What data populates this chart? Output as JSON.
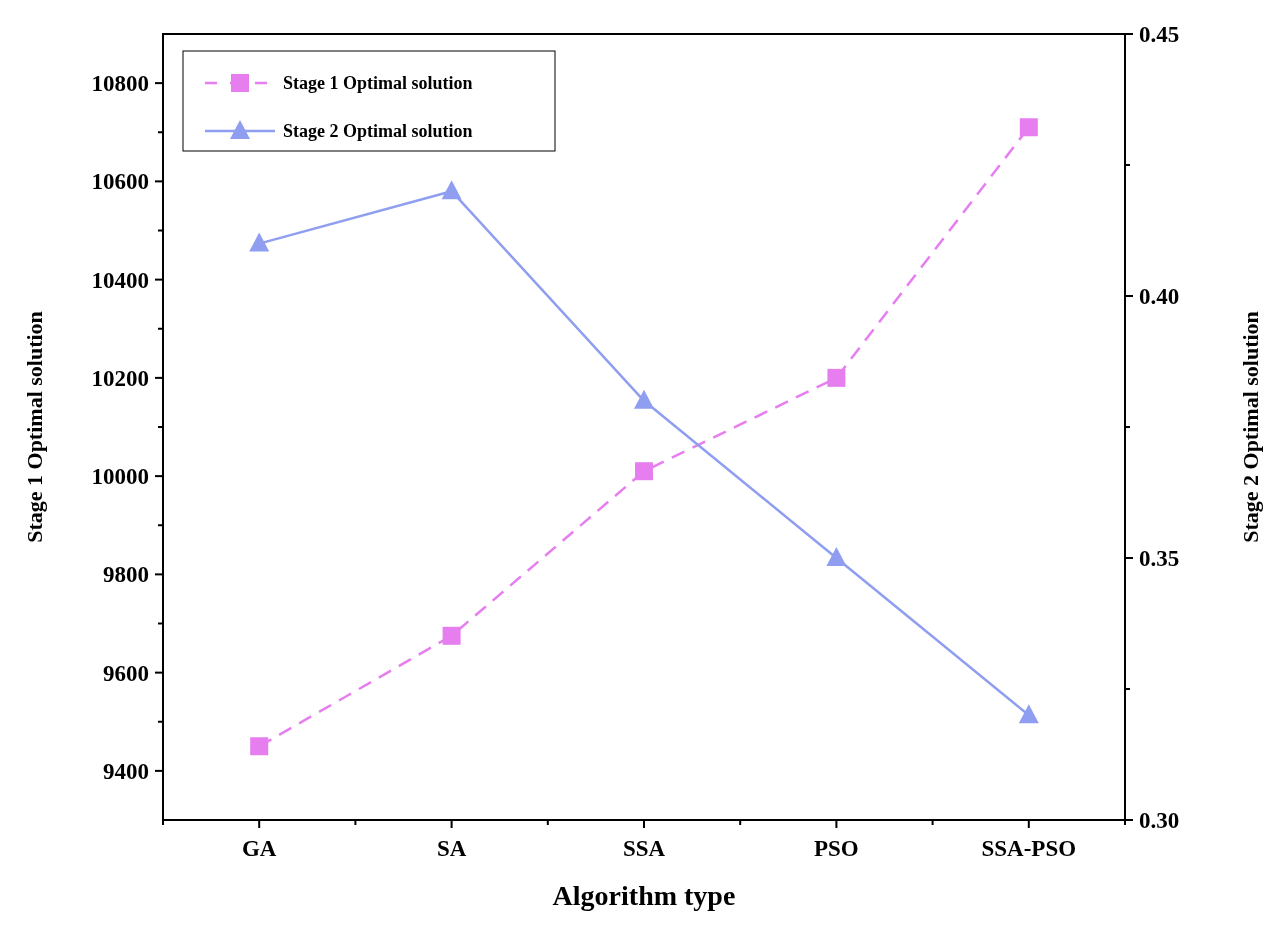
{
  "chart_data": {
    "type": "line",
    "xlabel": "Algorithm type",
    "ylabel": "Stage 1 Optimal solution",
    "y2label": "Stage 2 Optimal solution",
    "categories": [
      "GA",
      "SA",
      "SSA",
      "PSO",
      "SSA-PSO"
    ],
    "series": [
      {
        "name": "Stage 1 Optimal solution",
        "color": "#e67ef0",
        "values": [
          9450,
          9675,
          10010,
          10200,
          10710
        ],
        "marker": "square",
        "line_style": "dashed"
      },
      {
        "name": "Stage 2 Optimal solution",
        "color": "#8f9ef0",
        "values": [
          0.41,
          0.42,
          0.38,
          0.35,
          0.32
        ],
        "axis": "y2",
        "marker": "triangle",
        "line_style": "solid"
      }
    ],
    "ylim": [
      9300,
      10900
    ],
    "yticks": [
      9400,
      9600,
      9800,
      10000,
      10200,
      10400,
      10600,
      10800
    ],
    "y2lim": [
      0.3,
      0.45
    ],
    "y2ticks": [
      {
        "value": 0.3,
        "label": "0.30"
      },
      0.35,
      {
        "value": 0.4,
        "label": "0.40"
      },
      0.45
    ],
    "grid": false,
    "legend": "top left"
  }
}
